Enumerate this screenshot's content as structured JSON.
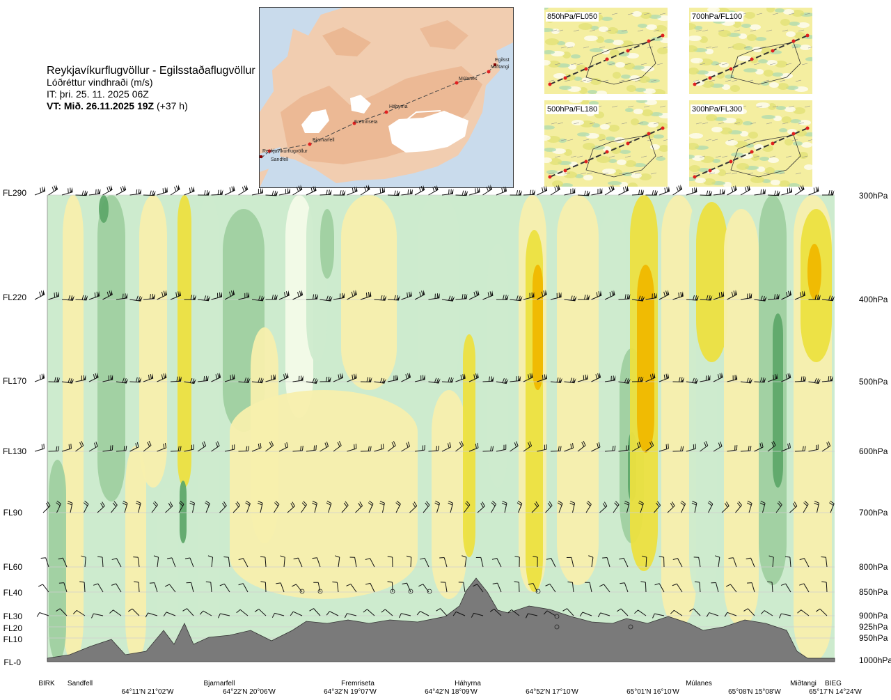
{
  "title": {
    "route": "Reykjavíkurflugvöllur - Egilsstaðaflugvöllur",
    "parameter": "Lóðréttur vindhraði (m/s)",
    "it": "IT: þri. 25. 11. 2025 06Z",
    "vt_label": "VT: Mið. 26.11.2025 19Z",
    "vt_offset": " (+37 h)"
  },
  "map": {
    "route_points": [
      "Reykjavíkurflugvöllur",
      "Sandfell",
      "Bjarnarfell",
      "Fremriseta",
      "Háhyrna",
      "Múlanes",
      "Miðtangi",
      "Egilsst"
    ]
  },
  "thumbnails": [
    {
      "label": "850hPa/FL050"
    },
    {
      "label": "700hPa/FL100"
    },
    {
      "label": "500hPa/FL180"
    },
    {
      "label": "300hPa/FL300"
    }
  ],
  "chart_data": {
    "type": "heatmap",
    "title": "Lóðréttur vindhraði (m/s)",
    "y_left_labels": [
      "FL290",
      "FL220",
      "FL170",
      "FL130",
      "FL90",
      "FL60",
      "FL40",
      "FL30",
      "FL20",
      "FL10",
      "FL-0"
    ],
    "y_right_labels": [
      "300hPa",
      "400hPa",
      "500hPa",
      "600hPa",
      "700hPa",
      "800hPa",
      "850hPa",
      "900hPa",
      "925hPa",
      "950hPa",
      "1000hPa"
    ],
    "levels": [
      {
        "fl": "FL290",
        "hpa": 300
      },
      {
        "fl": "FL220",
        "hpa": 400
      },
      {
        "fl": "FL170",
        "hpa": 500
      },
      {
        "fl": "FL130",
        "hpa": 600
      },
      {
        "fl": "FL90",
        "hpa": 700
      },
      {
        "fl": "FL60",
        "hpa": 800
      },
      {
        "fl": "FL40",
        "hpa": 850
      },
      {
        "fl": "FL30",
        "hpa": 900
      },
      {
        "fl": "FL20",
        "hpa": 925
      },
      {
        "fl": "FL10",
        "hpa": 950
      },
      {
        "fl": "FL-0",
        "hpa": 1000
      }
    ],
    "route_points": [
      "BIRK",
      "Sandfell",
      "Bjarnarfell",
      "Fremriseta",
      "Háhyrna",
      "Múlanes",
      "Miðtangi",
      "BIEG"
    ],
    "coordinates": [
      "64°11'N 21°02'W",
      "64°22'N 20°06'W",
      "64°32'N 19°07'W",
      "64°42'N 18°09'W",
      "64°52'N 17°10'W",
      "65°01'N 16°10'W",
      "65°08'N 15°08'W",
      "65°17'N 14°24'W"
    ],
    "colors": {
      "strong_down": "#5fa86a",
      "down": "#9fd0a0",
      "weak_down": "#cdebce",
      "neutral": "#f3fbe8",
      "weak_up": "#f7efad",
      "up": "#ece040",
      "strong_up": "#f0b800",
      "terrain": "#7a7a7a"
    }
  }
}
